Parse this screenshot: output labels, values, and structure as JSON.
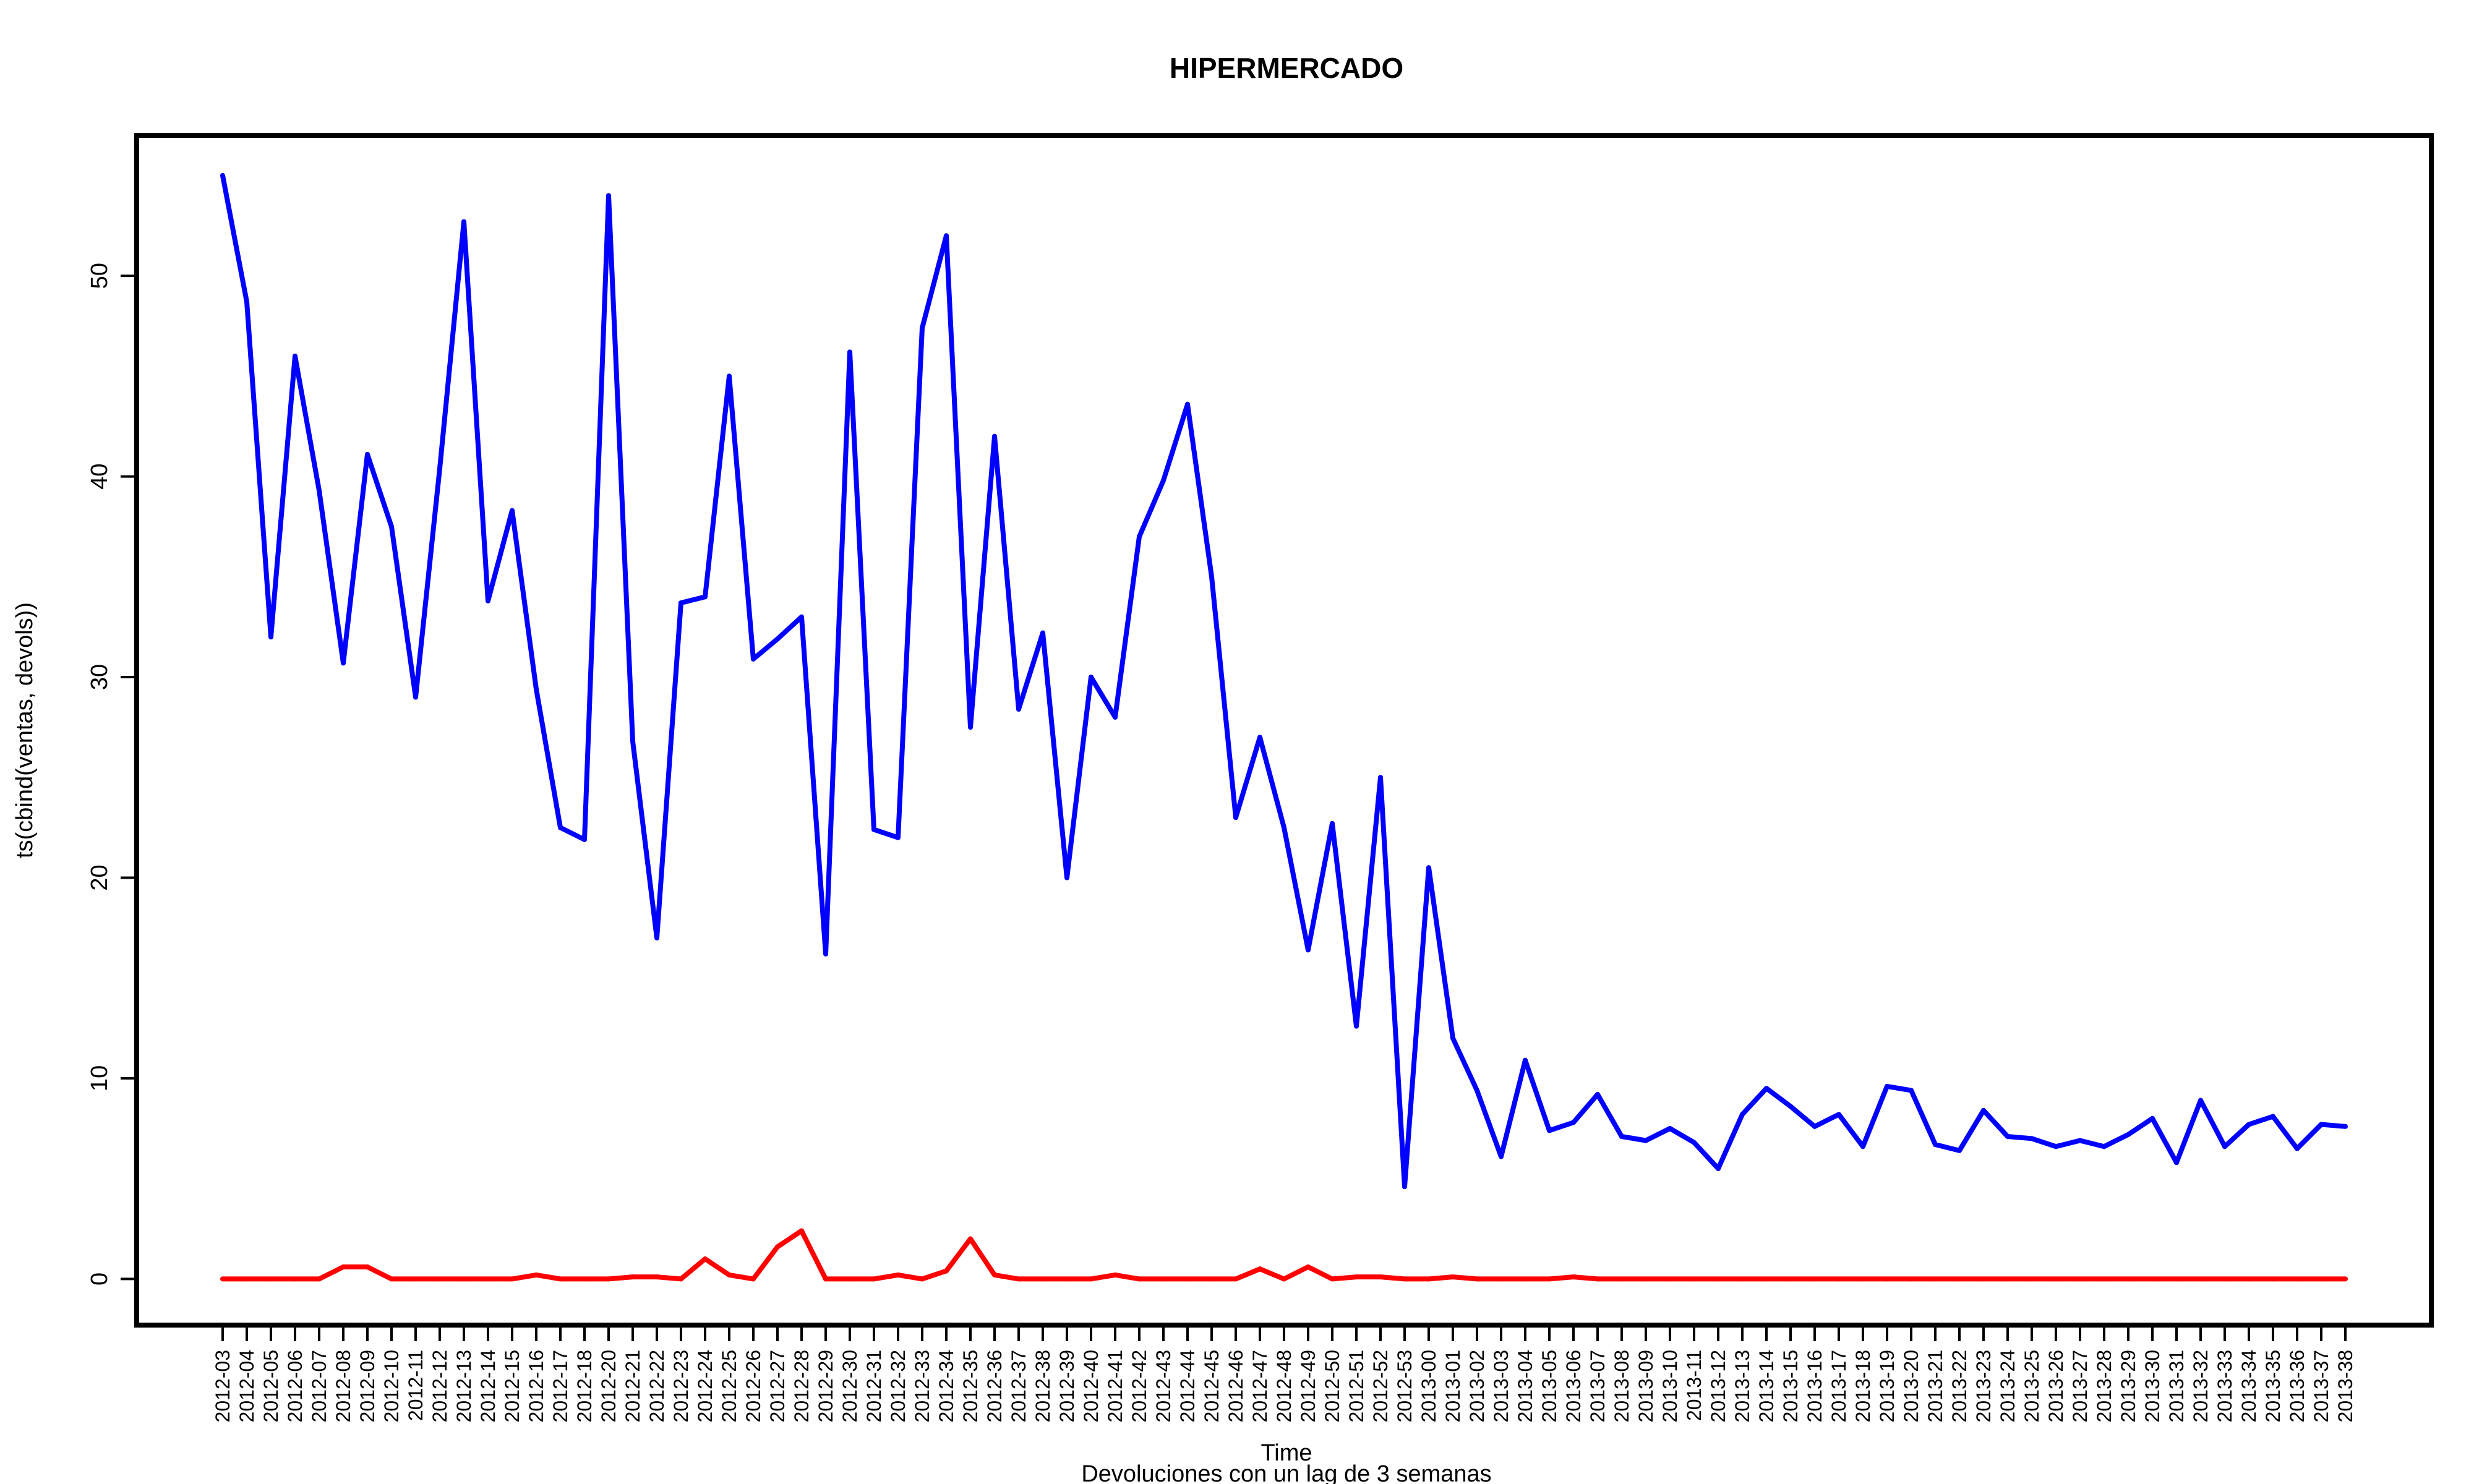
{
  "chart_data": {
    "type": "line",
    "title": "HIPERMERCADO",
    "xlabel": "Time",
    "ylabel": "ts(cbind(ventas, devols))",
    "caption": "Devoluciones con un lag de 3 semanas",
    "ylim": [
      -2.3,
      57
    ],
    "yticks": [
      0,
      10,
      20,
      30,
      40,
      50
    ],
    "grid": false,
    "categories": [
      "2012-03",
      "2012-04",
      "2012-05",
      "2012-06",
      "2012-07",
      "2012-08",
      "2012-09",
      "2012-10",
      "2012-11",
      "2012-12",
      "2012-13",
      "2012-14",
      "2012-15",
      "2012-16",
      "2012-17",
      "2012-18",
      "2012-20",
      "2012-21",
      "2012-22",
      "2012-23",
      "2012-24",
      "2012-25",
      "2012-26",
      "2012-27",
      "2012-28",
      "2012-29",
      "2012-30",
      "2012-31",
      "2012-32",
      "2012-33",
      "2012-34",
      "2012-35",
      "2012-36",
      "2012-37",
      "2012-38",
      "2012-39",
      "2012-40",
      "2012-41",
      "2012-42",
      "2012-43",
      "2012-44",
      "2012-45",
      "2012-46",
      "2012-47",
      "2012-48",
      "2012-49",
      "2012-50",
      "2012-51",
      "2012-52",
      "2012-53",
      "2013-00",
      "2013-01",
      "2013-02",
      "2013-03",
      "2013-04",
      "2013-05",
      "2013-06",
      "2013-07",
      "2013-08",
      "2013-09",
      "2013-10",
      "2013-11",
      "2013-12",
      "2013-13",
      "2013-14",
      "2013-15",
      "2013-16",
      "2013-17",
      "2013-18",
      "2013-19",
      "2013-20",
      "2013-21",
      "2013-22",
      "2013-23",
      "2013-24",
      "2013-25",
      "2013-26",
      "2013-27",
      "2013-28",
      "2013-29",
      "2013-30",
      "2013-31",
      "2013-32",
      "2013-33",
      "2013-34",
      "2013-35",
      "2013-36",
      "2013-37",
      "2013-38"
    ],
    "series": [
      {
        "color": "#0000ff",
        "values": [
          55.0,
          48.7,
          32.0,
          46.0,
          39.3,
          30.7,
          41.1,
          37.5,
          29.0,
          40.4,
          52.7,
          33.8,
          38.3,
          29.4,
          22.5,
          21.9,
          54.0,
          26.8,
          17.0,
          33.7,
          34.0,
          45.0,
          30.9,
          31.9,
          33.0,
          16.2,
          46.2,
          22.4,
          22.0,
          47.4,
          52.0,
          27.5,
          42.0,
          28.4,
          32.2,
          20.0,
          30.0,
          28.0,
          37.0,
          39.8,
          43.6,
          35.0,
          23.0,
          27.0,
          22.5,
          16.4,
          22.7,
          12.6,
          25.0,
          4.6,
          20.5,
          12.0,
          9.4,
          6.1,
          10.9,
          7.4,
          7.8,
          9.2,
          7.1,
          6.9,
          7.5,
          6.8,
          5.5,
          8.2,
          9.5,
          8.6,
          7.6,
          8.2,
          6.6,
          9.6,
          9.4,
          6.7,
          6.4,
          8.4,
          7.1,
          7.0,
          6.6,
          6.9,
          6.6,
          7.2,
          8.0,
          5.8,
          8.9,
          6.6,
          7.7,
          8.1,
          6.5,
          7.7,
          7.6
        ]
      },
      {
        "color": "#ff0000",
        "values": [
          0,
          0,
          0,
          0,
          0,
          0.6,
          0.6,
          0,
          0,
          0,
          0,
          0,
          0,
          0.2,
          0,
          0,
          0,
          0.1,
          0.1,
          0,
          1.0,
          0.2,
          0,
          1.6,
          2.4,
          0,
          0,
          0,
          0.2,
          0,
          0.4,
          2.0,
          0.2,
          0,
          0,
          0,
          0,
          0.2,
          0,
          0,
          0,
          0,
          0,
          0.5,
          0,
          0.6,
          0,
          0.1,
          0.1,
          0,
          0,
          0.1,
          0,
          0,
          0,
          0,
          0.1,
          0,
          0,
          0,
          0,
          0,
          0,
          0,
          0,
          0,
          0,
          0,
          0,
          0,
          0,
          0,
          0,
          0,
          0,
          0,
          0,
          0,
          0,
          0,
          0,
          0,
          0,
          0,
          0,
          0,
          0,
          0,
          0
        ]
      }
    ]
  }
}
